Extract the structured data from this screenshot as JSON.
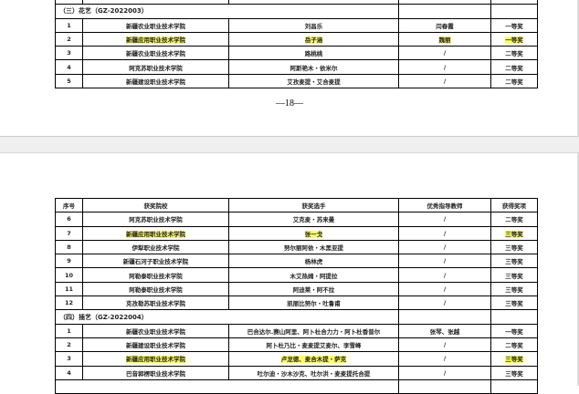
{
  "page1": {
    "section": "（三）花艺（GZ-2022003）",
    "rows": [
      {
        "no": "1",
        "school": "新疆农业职业技术学院",
        "player": "刘昌乐",
        "teacher": "闫春霞",
        "award": "一等奖",
        "hl": []
      },
      {
        "no": "2",
        "school": "新疆应用职业技术学院",
        "player": "岳子涵",
        "teacher": "魏丽",
        "award": "一等奖",
        "hl": [
          "school",
          "player",
          "teacher",
          "award"
        ]
      },
      {
        "no": "3",
        "school": "新疆农业职业技术学院",
        "player": "路桃桃",
        "teacher": "/",
        "award": "二等奖",
        "hl": []
      },
      {
        "no": "4",
        "school": "阿克苏职业技术学院",
        "player": "阿斯艳木・依米尔",
        "teacher": "/",
        "award": "二等奖",
        "hl": []
      },
      {
        "no": "5",
        "school": "新疆建设职业技术学院",
        "player": "艾孜麦提・艾合麦提",
        "teacher": "/",
        "award": "二等奖",
        "hl": []
      }
    ],
    "page_number": "—18—"
  },
  "page2": {
    "headers": [
      "序号",
      "获奖院校",
      "获奖选手",
      "优秀指导教师",
      "获得奖项"
    ],
    "rows": [
      {
        "no": "6",
        "school": "阿克苏职业技术学院",
        "player": "艾克麦・苏来曼",
        "teacher": "/",
        "award": "二等奖",
        "hl": []
      },
      {
        "no": "7",
        "school": "新疆应用职业技术学院",
        "player": "张一戈",
        "teacher": "/",
        "award": "三等奖",
        "hl": [
          "school",
          "player",
          "award"
        ]
      },
      {
        "no": "8",
        "school": "伊犁职业技术学院",
        "player": "努尔丽阿依・木黑亚提",
        "teacher": "/",
        "award": "三等奖",
        "hl": []
      },
      {
        "no": "9",
        "school": "新疆石河子职业技术学院",
        "player": "杨林虎",
        "teacher": "/",
        "award": "三等奖",
        "hl": []
      },
      {
        "no": "10",
        "school": "阿勒泰职业技术学院",
        "player": "木艾热姆・阿提拉",
        "teacher": "/",
        "award": "三等奖",
        "hl": []
      },
      {
        "no": "11",
        "school": "阿勒泰职业技术学院",
        "player": "阿迪莱・阿不拉",
        "teacher": "/",
        "award": "三等奖",
        "hl": []
      },
      {
        "no": "12",
        "school": "克孜勒苏职业技术学院",
        "player": "凯丽比努尔・吐鲁甫",
        "teacher": "/",
        "award": "三等奖",
        "hl": []
      }
    ],
    "section": "（四）插艺（GZ-2022004）",
    "rows2": [
      {
        "no": "1",
        "school": "新疆农业职业技术学院",
        "player": "巴合达尔.赛山阿里、阿卜杜合力力・阿卜杜香普尔",
        "teacher": "张琴、张越",
        "award": "一等奖",
        "hl": []
      },
      {
        "no": "2",
        "school": "新疆建设职业技术学院",
        "player": "阿卜杜乃比・麦麦提艾麦尔、李雪峰",
        "teacher": "/",
        "award": "二等奖",
        "hl": []
      },
      {
        "no": "3",
        "school": "新疆应用职业技术学院",
        "player": "卢龙德、麦合木提・萨克",
        "teacher": "/",
        "award": "三等奖",
        "hl": [
          "school",
          "player",
          "award"
        ]
      },
      {
        "no": "4",
        "school": "巴音郭楞职业技术学院",
        "player": "吐尔迪・沙木沙克、吐尔洪・麦麦提托合提",
        "teacher": "/",
        "award": "三等奖",
        "hl": []
      }
    ]
  },
  "colors": {
    "highlight": "#ffff66",
    "page_gap": "#efefef"
  }
}
